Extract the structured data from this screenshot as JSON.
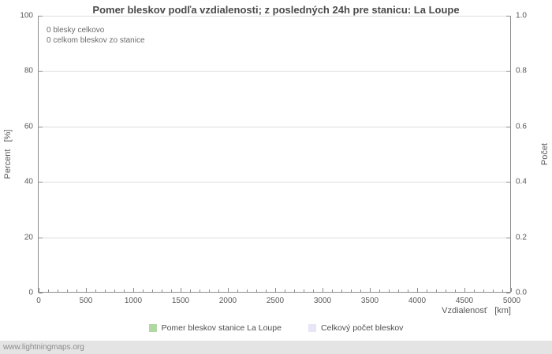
{
  "title": "Pomer bleskov podľa vzdialenosti; z posledných 24h pre stanicu: La Loupe",
  "annotations": {
    "line1": "0 blesky celkovo",
    "line2": "0 celkom bleskov zo stanice"
  },
  "axes": {
    "left_label": "Percent   [%]",
    "right_label": "Počet",
    "x_label": "Vzdialenosť   [km]",
    "x_ticks": [
      "0",
      "500",
      "1000",
      "1500",
      "2000",
      "2500",
      "3000",
      "3500",
      "4000",
      "4500",
      "5000"
    ],
    "left_ticks": [
      "0",
      "20",
      "40",
      "60",
      "80",
      "100"
    ],
    "right_ticks": [
      "0.0",
      "0.2",
      "0.4",
      "0.6",
      "0.8",
      "1.0"
    ]
  },
  "legend": [
    {
      "label": "Pomer bleskov stanice La Loupe",
      "color": "#b0d8a4"
    },
    {
      "label": "Celkový počet bleskov",
      "color": "#e6e6f8"
    }
  ],
  "watermark": "www.lightningmaps.org",
  "chart_data": {
    "type": "line",
    "title": "Pomer bleskov podľa vzdialenosti; z posledných 24h pre stanicu: La Loupe",
    "xlabel": "Vzdialenosť [km]",
    "ylabel_left": "Percent [%]",
    "ylabel_right": "Počet",
    "xlim": [
      0,
      5000
    ],
    "x_tick_step": 500,
    "x_minor_tick_step": 100,
    "ylim_left": [
      0,
      100
    ],
    "ylim_right": [
      0.0,
      1.0
    ],
    "grid": "horizontal",
    "legend_position": "bottom",
    "annotations": [
      "0 blesky celkovo",
      "0 celkom bleskov zo stanice"
    ],
    "series": [
      {
        "name": "Pomer bleskov stanice La Loupe",
        "color": "#b0d8a4",
        "values": []
      },
      {
        "name": "Celkový počet bleskov",
        "color": "#e6e6f8",
        "values": []
      }
    ]
  }
}
